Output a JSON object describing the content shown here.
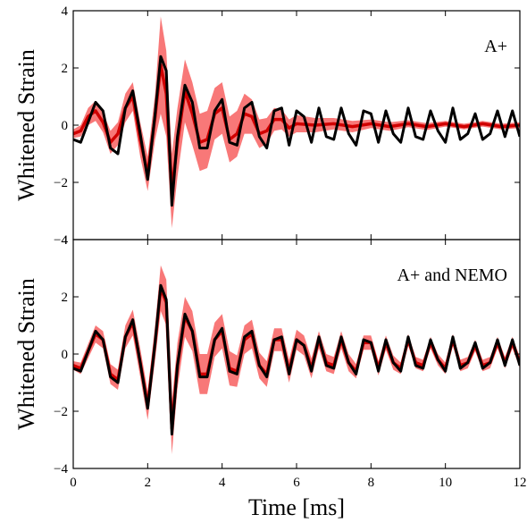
{
  "chart_data": [
    {
      "type": "line",
      "panel_label": "A+",
      "ylabel": "Whitened Strain",
      "ylim": [
        -4,
        4
      ],
      "yticks": [
        "−4",
        "−2",
        "0",
        "2",
        "4"
      ],
      "xlim": [
        0,
        12
      ],
      "colors": {
        "median": "#d00000",
        "band": "#f87878",
        "injection": "#000000"
      },
      "series": [
        {
          "x": [
            0,
            0.2,
            0.4,
            0.6,
            0.8,
            1.0,
            1.2,
            1.4,
            1.6,
            1.8,
            2.0,
            2.2,
            2.35,
            2.5,
            2.65,
            2.8,
            3.0,
            3.2,
            3.4,
            3.6,
            3.8,
            4.0,
            4.2,
            4.4,
            4.6,
            4.8,
            5.0,
            5.2,
            5.4,
            5.6,
            5.8,
            6.0,
            6.5,
            7.0,
            7.5,
            8.0,
            8.5,
            9.0,
            9.5,
            10.0,
            10.5,
            11.0,
            11.5,
            12.0
          ],
          "y": [
            -0.3,
            -0.2,
            0.3,
            0.5,
            0.1,
            -0.6,
            -0.3,
            0.6,
            1.0,
            -0.5,
            -1.7,
            0.3,
            2.1,
            1.1,
            -2.3,
            -0.6,
            1.2,
            0.4,
            -0.6,
            -0.5,
            0.4,
            0.6,
            -0.5,
            -0.3,
            0.4,
            0.3,
            -0.3,
            -0.2,
            0.2,
            0.2,
            -0.1,
            0.05,
            0.0,
            0.05,
            -0.05,
            0.05,
            -0.05,
            0.05,
            -0.05,
            0.05,
            -0.05,
            0.05,
            -0.05,
            0.0
          ],
          "band_half_width": [
            0.15,
            0.2,
            0.3,
            0.35,
            0.35,
            0.4,
            0.4,
            0.5,
            0.5,
            0.6,
            0.6,
            0.8,
            1.7,
            1.5,
            1.3,
            1.2,
            1.1,
            1.1,
            1.0,
            1.0,
            0.9,
            0.9,
            0.8,
            0.8,
            0.7,
            0.6,
            0.5,
            0.45,
            0.4,
            0.35,
            0.3,
            0.3,
            0.25,
            0.2,
            0.2,
            0.15,
            0.15,
            0.12,
            0.12,
            0.1,
            0.1,
            0.1,
            0.1,
            0.1
          ]
        },
        {
          "x": [
            0,
            0.2,
            0.4,
            0.6,
            0.8,
            1.0,
            1.2,
            1.4,
            1.6,
            1.8,
            2.0,
            2.2,
            2.35,
            2.5,
            2.65,
            2.8,
            3.0,
            3.2,
            3.4,
            3.6,
            3.8,
            4.0,
            4.2,
            4.4,
            4.6,
            4.8,
            5.0,
            5.2,
            5.4,
            5.6,
            5.8,
            6.0,
            6.2,
            6.4,
            6.6,
            6.8,
            7.0,
            7.2,
            7.4,
            7.6,
            7.8,
            8.0,
            8.2,
            8.4,
            8.6,
            8.8,
            9.0,
            9.2,
            9.4,
            9.6,
            9.8,
            10.0,
            10.2,
            10.4,
            10.6,
            10.8,
            11.0,
            11.2,
            11.4,
            11.6,
            11.8,
            12.0
          ],
          "y": [
            -0.5,
            -0.6,
            0.1,
            0.8,
            0.5,
            -0.8,
            -1.0,
            0.6,
            1.2,
            -0.3,
            -1.9,
            0.4,
            2.4,
            1.9,
            -2.8,
            -0.4,
            1.4,
            0.8,
            -0.8,
            -0.8,
            0.5,
            0.9,
            -0.6,
            -0.7,
            0.6,
            0.8,
            -0.4,
            -0.8,
            0.5,
            0.6,
            -0.7,
            0.5,
            0.3,
            -0.6,
            0.6,
            -0.4,
            -0.5,
            0.6,
            -0.3,
            -0.7,
            0.5,
            0.4,
            -0.6,
            0.5,
            -0.3,
            -0.6,
            0.6,
            -0.4,
            -0.5,
            0.5,
            -0.2,
            -0.6,
            0.6,
            -0.5,
            -0.3,
            0.4,
            -0.5,
            -0.3,
            0.5,
            -0.4,
            0.5,
            -0.4
          ]
        }
      ]
    },
    {
      "type": "line",
      "panel_label": "A+ and NEMO",
      "ylabel": "Whitened Strain",
      "xlabel": "Time [ms]",
      "ylim": [
        -4,
        4
      ],
      "yticks": [
        "−4",
        "−2",
        "0",
        "2",
        "4"
      ],
      "xlim": [
        0,
        12
      ],
      "xticks": [
        "0",
        "2",
        "4",
        "6",
        "8",
        "10",
        "12"
      ],
      "colors": {
        "median": "#d00000",
        "band": "#f87878",
        "injection": "#000000"
      },
      "series": [
        {
          "x": [
            0,
            0.2,
            0.4,
            0.6,
            0.8,
            1.0,
            1.2,
            1.4,
            1.6,
            1.8,
            2.0,
            2.2,
            2.35,
            2.5,
            2.65,
            2.8,
            3.0,
            3.2,
            3.4,
            3.6,
            3.8,
            4.0,
            4.2,
            4.4,
            4.6,
            4.8,
            5.0,
            5.2,
            5.4,
            5.6,
            5.8,
            6.0,
            6.2,
            6.4,
            6.6,
            6.8,
            7.0,
            7.2,
            7.4,
            7.6,
            7.8,
            8.0,
            8.2,
            8.4,
            8.6,
            8.8,
            9.0,
            9.2,
            9.4,
            9.6,
            9.8,
            10.0,
            10.2,
            10.4,
            10.6,
            10.8,
            11.0,
            11.2,
            11.4,
            11.6,
            11.8,
            12.0
          ],
          "y": [
            -0.4,
            -0.5,
            0.1,
            0.7,
            0.5,
            -0.7,
            -0.9,
            0.6,
            1.1,
            -0.3,
            -1.8,
            0.4,
            2.3,
            1.8,
            -2.6,
            -0.4,
            1.3,
            0.8,
            -0.7,
            -0.7,
            0.5,
            0.8,
            -0.5,
            -0.6,
            0.5,
            0.7,
            -0.4,
            -0.7,
            0.5,
            0.5,
            -0.6,
            0.5,
            0.3,
            -0.5,
            0.5,
            -0.3,
            -0.4,
            0.5,
            -0.3,
            -0.6,
            0.4,
            0.4,
            -0.5,
            0.4,
            -0.3,
            -0.5,
            0.5,
            -0.3,
            -0.4,
            0.4,
            -0.2,
            -0.5,
            0.5,
            -0.4,
            -0.3,
            0.3,
            -0.4,
            -0.3,
            0.4,
            -0.3,
            0.4,
            -0.3
          ],
          "band_half_width": [
            0.15,
            0.2,
            0.25,
            0.3,
            0.3,
            0.35,
            0.35,
            0.4,
            0.45,
            0.5,
            0.5,
            0.6,
            0.8,
            0.8,
            0.9,
            0.8,
            0.7,
            0.7,
            0.7,
            0.7,
            0.6,
            0.6,
            0.6,
            0.55,
            0.5,
            0.5,
            0.45,
            0.45,
            0.4,
            0.4,
            0.4,
            0.35,
            0.35,
            0.35,
            0.3,
            0.3,
            0.3,
            0.3,
            0.3,
            0.25,
            0.25,
            0.25,
            0.25,
            0.25,
            0.25,
            0.2,
            0.2,
            0.2,
            0.2,
            0.2,
            0.2,
            0.2,
            0.2,
            0.2,
            0.2,
            0.2,
            0.2,
            0.2,
            0.2,
            0.2,
            0.2,
            0.2
          ]
        },
        {
          "x": [
            0,
            0.2,
            0.4,
            0.6,
            0.8,
            1.0,
            1.2,
            1.4,
            1.6,
            1.8,
            2.0,
            2.2,
            2.35,
            2.5,
            2.65,
            2.8,
            3.0,
            3.2,
            3.4,
            3.6,
            3.8,
            4.0,
            4.2,
            4.4,
            4.6,
            4.8,
            5.0,
            5.2,
            5.4,
            5.6,
            5.8,
            6.0,
            6.2,
            6.4,
            6.6,
            6.8,
            7.0,
            7.2,
            7.4,
            7.6,
            7.8,
            8.0,
            8.2,
            8.4,
            8.6,
            8.8,
            9.0,
            9.2,
            9.4,
            9.6,
            9.8,
            10.0,
            10.2,
            10.4,
            10.6,
            10.8,
            11.0,
            11.2,
            11.4,
            11.6,
            11.8,
            12.0
          ],
          "y": [
            -0.5,
            -0.6,
            0.1,
            0.8,
            0.5,
            -0.8,
            -1.0,
            0.6,
            1.2,
            -0.3,
            -1.9,
            0.4,
            2.4,
            1.9,
            -2.8,
            -0.4,
            1.4,
            0.8,
            -0.8,
            -0.8,
            0.5,
            0.9,
            -0.6,
            -0.7,
            0.6,
            0.8,
            -0.4,
            -0.8,
            0.5,
            0.6,
            -0.7,
            0.5,
            0.3,
            -0.6,
            0.6,
            -0.4,
            -0.5,
            0.6,
            -0.3,
            -0.7,
            0.5,
            0.4,
            -0.6,
            0.5,
            -0.3,
            -0.6,
            0.6,
            -0.4,
            -0.5,
            0.5,
            -0.2,
            -0.6,
            0.6,
            -0.5,
            -0.3,
            0.4,
            -0.5,
            -0.3,
            0.5,
            -0.4,
            0.5,
            -0.4
          ]
        }
      ]
    }
  ]
}
